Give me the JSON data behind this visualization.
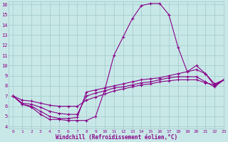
{
  "xlabel": "Windchill (Refroidissement éolien,°C)",
  "xlim": [
    -0.5,
    23
  ],
  "ylim": [
    3.8,
    16.3
  ],
  "yticks": [
    4,
    5,
    6,
    7,
    8,
    9,
    10,
    11,
    12,
    13,
    14,
    15,
    16
  ],
  "xticks": [
    0,
    1,
    2,
    3,
    4,
    5,
    6,
    7,
    8,
    9,
    10,
    11,
    12,
    13,
    14,
    15,
    16,
    17,
    18,
    19,
    20,
    21,
    22,
    23
  ],
  "bg_color": "#c8e8e8",
  "line_color": "#880088",
  "grid_color": "#a0c8c8",
  "curves": [
    [
      7.0,
      6.2,
      5.9,
      5.2,
      4.7,
      4.7,
      4.6,
      4.6,
      4.6,
      5.0,
      7.6,
      11.0,
      12.8,
      14.6,
      15.9,
      16.1,
      16.1,
      15.0,
      11.8,
      9.4,
      10.0,
      9.2,
      8.0,
      8.6
    ],
    [
      7.0,
      6.2,
      6.0,
      5.5,
      5.0,
      4.8,
      4.8,
      4.9,
      7.4,
      7.6,
      7.8,
      8.0,
      8.2,
      8.4,
      8.6,
      8.7,
      8.8,
      9.0,
      9.2,
      9.4,
      9.6,
      9.2,
      8.2,
      8.6
    ],
    [
      7.0,
      6.3,
      6.2,
      5.9,
      5.5,
      5.3,
      5.2,
      5.2,
      7.0,
      7.3,
      7.5,
      7.8,
      7.9,
      8.1,
      8.3,
      8.4,
      8.6,
      8.8,
      8.9,
      8.9,
      8.9,
      8.4,
      7.9,
      8.6
    ],
    [
      7.0,
      6.6,
      6.5,
      6.3,
      6.1,
      6.0,
      6.0,
      6.0,
      6.6,
      6.9,
      7.2,
      7.5,
      7.7,
      7.9,
      8.1,
      8.2,
      8.4,
      8.5,
      8.6,
      8.6,
      8.6,
      8.3,
      8.1,
      8.6
    ]
  ]
}
